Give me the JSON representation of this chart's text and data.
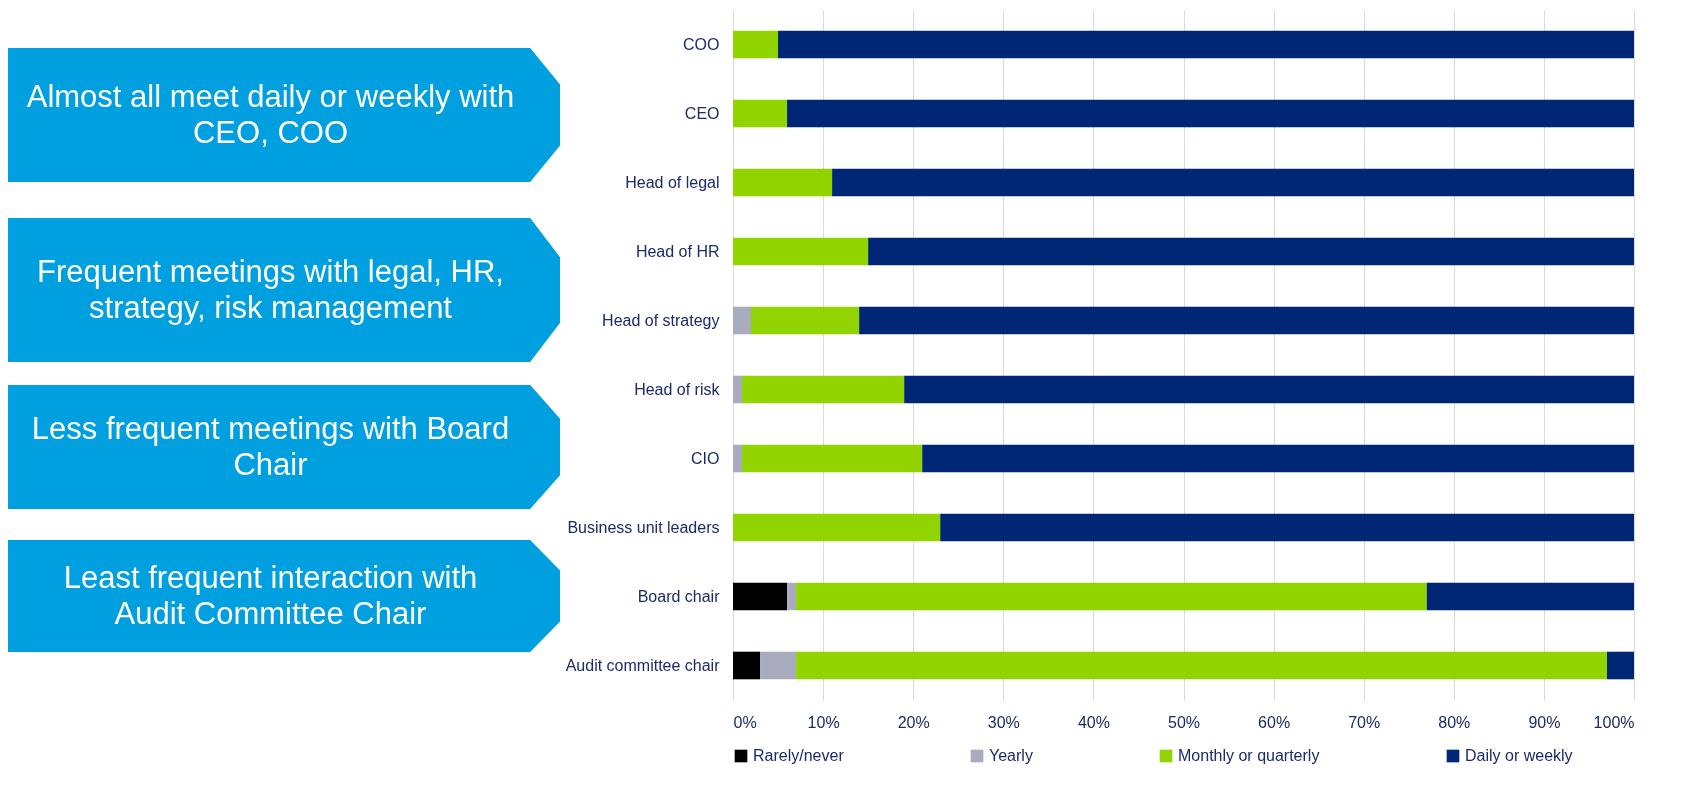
{
  "chart_data": {
    "type": "bar",
    "orientation": "horizontal",
    "stacked": true,
    "categories": [
      "COO",
      "CEO",
      "Head of legal",
      "Head of HR",
      "Head of strategy",
      "Head of risk",
      "CIO",
      "Business unit leaders",
      "Board chair",
      "Audit committee chair"
    ],
    "series": [
      {
        "name": "Rarely/never",
        "color": "#000000",
        "values": [
          0,
          0,
          0,
          0,
          0,
          0,
          0,
          0,
          6,
          3
        ]
      },
      {
        "name": "Yearly",
        "color": "#a9abbf",
        "values": [
          0,
          0,
          0,
          0,
          2,
          1,
          1,
          0,
          1,
          4
        ]
      },
      {
        "name": "Monthly or quarterly",
        "color": "#92d400",
        "values": [
          5,
          6,
          11,
          15,
          12,
          18,
          20,
          23,
          70,
          90
        ]
      },
      {
        "name": "Daily or weekly",
        "color": "#002776",
        "values": [
          95,
          94,
          89,
          85,
          86,
          81,
          79,
          77,
          23,
          3
        ]
      }
    ],
    "xlim": [
      0,
      100
    ],
    "xticks": [
      {
        "value": 0,
        "label": "0%"
      },
      {
        "value": 10,
        "label": "10%"
      },
      {
        "value": 20,
        "label": "20%"
      },
      {
        "value": 30,
        "label": "30%"
      },
      {
        "value": 40,
        "label": "40%"
      },
      {
        "value": 50,
        "label": "50%"
      },
      {
        "value": 60,
        "label": "60%"
      },
      {
        "value": 70,
        "label": "70%"
      },
      {
        "value": 80,
        "label": "80%"
      },
      {
        "value": 90,
        "label": "90%"
      },
      {
        "value": 100,
        "label": "100%"
      }
    ],
    "grid": "x",
    "legend": "bottom",
    "annotations": [
      "Almost all meet daily or weekly with CEO, COO",
      "Frequent meetings with legal, HR, strategy, risk management",
      "Less frequent meetings with Board Chair",
      "Least frequent interaction with Audit Committee Chair"
    ]
  }
}
